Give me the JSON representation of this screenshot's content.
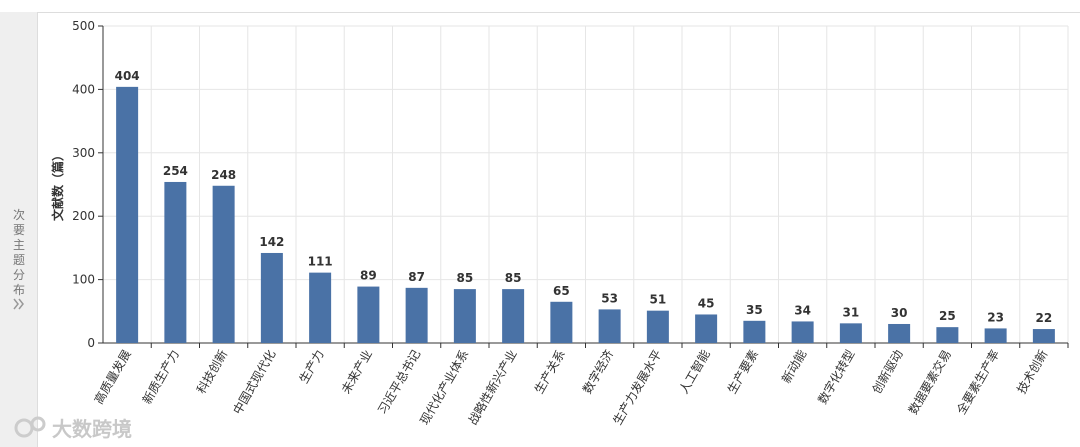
{
  "sidebar_label": "次要主题分布",
  "watermark": "大数跨境",
  "chart_data": {
    "type": "bar",
    "y_label": "文献数（篇）",
    "categories": [
      "高质量发展",
      "新质生产力",
      "科技创新",
      "中国式现代化",
      "生产力",
      "未来产业",
      "习近平总书记",
      "现代化产业体系",
      "战略性新兴产业",
      "生产关系",
      "数字经济",
      "生产力发展水平",
      "人工智能",
      "生产要素",
      "新动能",
      "数字化转型",
      "创新驱动",
      "数据要素交易",
      "全要素生产率",
      "技术创新"
    ],
    "values": [
      404,
      254,
      248,
      142,
      111,
      89,
      87,
      85,
      85,
      65,
      53,
      51,
      45,
      35,
      34,
      31,
      30,
      25,
      23,
      22
    ],
    "color": "#4a72a6",
    "ylim": [
      0,
      500
    ],
    "yticks": [
      0,
      100,
      200,
      300,
      400,
      500
    ],
    "grid": true
  }
}
